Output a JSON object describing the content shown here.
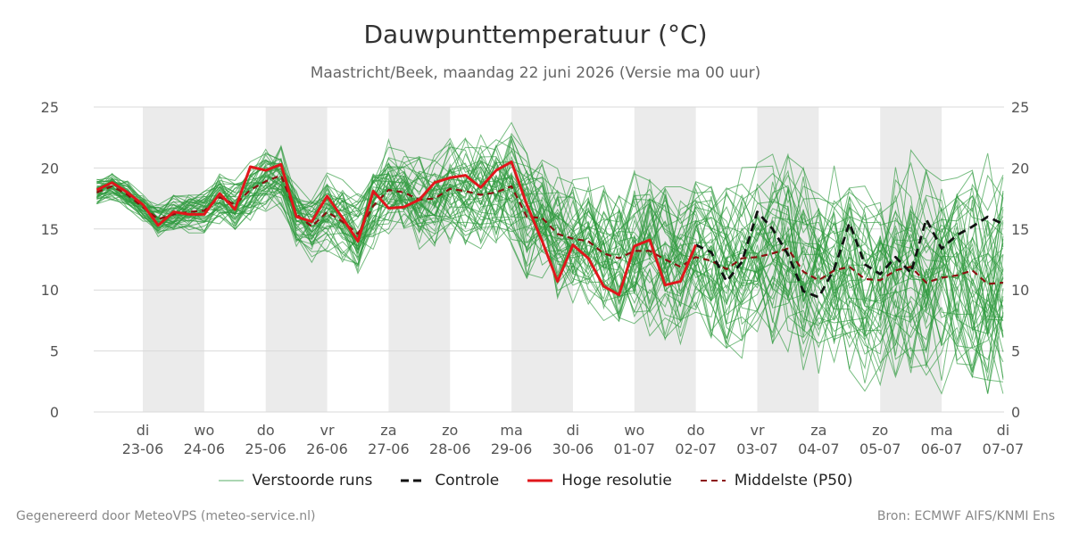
{
  "title": "Dauwpunttemperatuur (°C)",
  "subtitle": "Maastricht/Beek, maandag 22 juni 2026 (Versie ma 00 uur)",
  "footer": {
    "left": "Gegenereerd door MeteoVPS (meteo-service.nl)",
    "right": "Bron: ECMWF AIFS/KNMI Ens"
  },
  "legend": {
    "perturbed": "Verstoorde runs",
    "control": "Controle",
    "high_res": "Hoge resolutie",
    "median": "Middelste (P50)"
  },
  "colors": {
    "perturbed": "#2e9a3e",
    "control": "#111111",
    "high_res": "#e0161b",
    "median": "#8b1010",
    "weekend_band": "#ebebeb",
    "grid": "#d9d9d9"
  },
  "chart_data": {
    "type": "line",
    "ylim": [
      0,
      25
    ],
    "yticks": [
      0,
      5,
      10,
      15,
      20,
      25
    ],
    "xlim_days": [
      -0.8,
      14.0
    ],
    "grid": true,
    "legend_position": "bottom",
    "day_labels": [
      {
        "day": "di",
        "date": "23-06"
      },
      {
        "day": "wo",
        "date": "24-06"
      },
      {
        "day": "do",
        "date": "25-06"
      },
      {
        "day": "vr",
        "date": "26-06"
      },
      {
        "day": "za",
        "date": "27-06"
      },
      {
        "day": "zo",
        "date": "28-06"
      },
      {
        "day": "ma",
        "date": "29-06"
      },
      {
        "day": "di",
        "date": "30-06"
      },
      {
        "day": "wo",
        "date": "01-07"
      },
      {
        "day": "do",
        "date": "02-07"
      },
      {
        "day": "vr",
        "date": "03-07"
      },
      {
        "day": "za",
        "date": "04-07"
      },
      {
        "day": "zo",
        "date": "05-07"
      },
      {
        "day": "ma",
        "date": "06-07"
      },
      {
        "day": "di",
        "date": "07-07"
      }
    ],
    "shaded_days": [
      0,
      2,
      4,
      6,
      8,
      10,
      12
    ],
    "series": [
      {
        "name": "Hoge resolutie",
        "x": [
          -0.75,
          -0.5,
          -0.25,
          0,
          0.25,
          0.5,
          0.75,
          1.0,
          1.25,
          1.5,
          1.75,
          2.0,
          2.25,
          2.5,
          2.75,
          3.0,
          3.25,
          3.5,
          3.75,
          4.0,
          4.25,
          4.5,
          4.75,
          5.0,
          5.25,
          5.5,
          5.75,
          6.0,
          6.25,
          6.5,
          6.75,
          7.0,
          7.25,
          7.5,
          7.75,
          8.0,
          8.25,
          8.5,
          8.75,
          9.0
        ],
        "values": [
          18.2,
          18.8,
          18.0,
          17.0,
          15.3,
          16.4,
          16.2,
          16.2,
          17.9,
          16.6,
          20.1,
          19.8,
          20.3,
          16.0,
          15.6,
          17.7,
          15.9,
          14.0,
          18.1,
          16.7,
          16.8,
          17.4,
          18.8,
          19.2,
          19.4,
          18.4,
          19.8,
          20.5,
          17.0,
          14.0,
          10.7,
          13.7,
          12.6,
          10.3,
          9.6,
          13.6,
          14.1,
          10.4,
          10.7,
          13.7
        ]
      },
      {
        "name": "Controle",
        "x": [
          9.0,
          9.25,
          9.5,
          9.75,
          10.0,
          10.25,
          10.5,
          10.75,
          11.0,
          11.25,
          11.5,
          11.75,
          12.0,
          12.25,
          12.5,
          12.75,
          13.0,
          13.25,
          13.5,
          13.75,
          14.0
        ],
        "values": [
          13.7,
          13.1,
          10.7,
          12.3,
          16.4,
          15.0,
          12.9,
          9.9,
          9.4,
          11.7,
          15.5,
          12.1,
          11.3,
          12.7,
          11.4,
          15.8,
          13.4,
          14.5,
          15.2,
          16.0,
          15.4
        ]
      },
      {
        "name": "Middelste (P50)",
        "x": [
          -0.75,
          -0.5,
          -0.25,
          0,
          0.25,
          0.5,
          0.75,
          1.0,
          1.25,
          1.5,
          1.75,
          2.0,
          2.25,
          2.5,
          2.75,
          3.0,
          3.25,
          3.5,
          3.75,
          4.0,
          4.25,
          4.5,
          4.75,
          5.0,
          5.25,
          5.5,
          5.75,
          6.0,
          6.25,
          6.5,
          6.75,
          7.0,
          7.25,
          7.5,
          7.75,
          8.0,
          8.25,
          8.5,
          8.75,
          9.0,
          9.25,
          9.5,
          9.75,
          10.0,
          10.25,
          10.5,
          10.75,
          11.0,
          11.25,
          11.5,
          11.75,
          12.0,
          12.25,
          12.5,
          12.75,
          13.0,
          13.25,
          13.5,
          13.75,
          14.0
        ],
        "values": [
          18.0,
          18.5,
          17.8,
          16.8,
          15.8,
          16.2,
          16.4,
          16.5,
          17.6,
          17.0,
          18.2,
          18.9,
          19.4,
          16.2,
          15.2,
          16.4,
          15.6,
          14.6,
          16.9,
          18.2,
          18.0,
          17.4,
          17.5,
          18.3,
          18.1,
          17.8,
          18.0,
          18.5,
          16.0,
          15.9,
          14.6,
          14.2,
          14.0,
          13.0,
          12.6,
          13.2,
          13.2,
          12.5,
          11.9,
          12.7,
          12.4,
          11.7,
          12.6,
          12.7,
          13.0,
          13.4,
          11.5,
          10.8,
          11.6,
          11.9,
          10.9,
          10.8,
          11.6,
          11.9,
          10.6,
          11.0,
          11.2,
          11.6,
          10.5,
          10.6
        ]
      }
    ]
  }
}
